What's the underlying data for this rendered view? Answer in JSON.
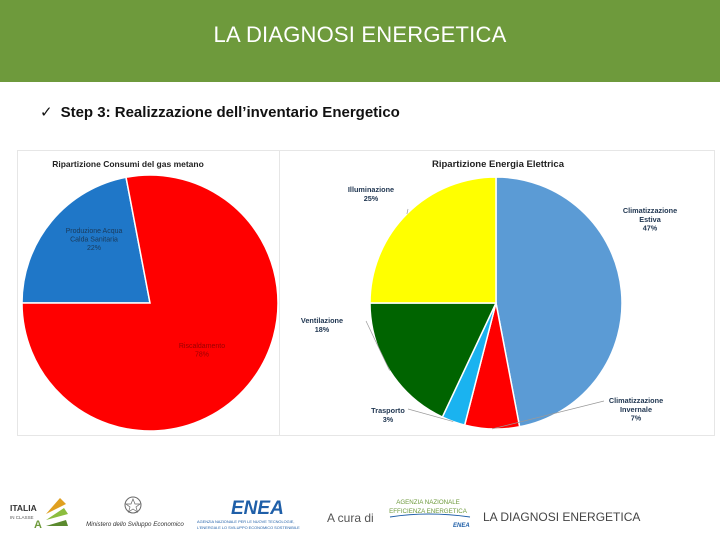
{
  "header": {
    "title": "LA DIAGNOSI ENERGETICA"
  },
  "step": {
    "check": "✓",
    "text": "Step 3: Realizzazione dell’inventario Energetico"
  },
  "chart_data": [
    {
      "type": "pie",
      "title": "Ripartizione Consumi del gas metano",
      "slices": [
        {
          "label_lines": [
            "Produzione Acqua",
            "Calda Sanitaria"
          ],
          "pct_label": "22%",
          "value": 22,
          "color": "#1f77c8"
        },
        {
          "label_lines": [
            "Riscaldamento"
          ],
          "pct_label": "78%",
          "value": 78,
          "color": "#ff0000"
        }
      ]
    },
    {
      "type": "pie",
      "title": "Ripartizione Energia Elettrica",
      "slices": [
        {
          "label_lines": [
            "Climatizzazione",
            "Estiva"
          ],
          "pct_label": "47%",
          "value": 47,
          "color": "#5b9bd5"
        },
        {
          "label_lines": [
            "Climatizzazione",
            "Invernale"
          ],
          "pct_label": "7%",
          "value": 7,
          "color": "#ff0000"
        },
        {
          "label_lines": [
            "Trasporto"
          ],
          "pct_label": "3%",
          "value": 3,
          "color": "#1ab3f0"
        },
        {
          "label_lines": [
            "Ventilazione"
          ],
          "pct_label": "18%",
          "value": 18,
          "color": "#006400"
        },
        {
          "label_lines": [
            "Illuminazione"
          ],
          "pct_label": "25%",
          "value": 25,
          "color": "#ffff00"
        }
      ]
    }
  ],
  "footer": {
    "logo_italia": {
      "line1": "ITALIA",
      "line2": "IN CLASSE",
      "badge": "A"
    },
    "ministero_text": "Ministero dello Sviluppo Economico",
    "enea_name": "ENEA",
    "enea_desc_1": "AGENZIA NAZIONALE PER LE NUOVE TECNOLOGIE,",
    "enea_desc_2": "L’ENERGIA E LO SVILUPPO ECONOMICO SOSTENIBILE",
    "a_cura_di": "A cura di",
    "agenzia_1": "AGENZIA NAZIONALE",
    "agenzia_2": "EFFICIENZA ENERGETICA",
    "title": "LA DIAGNOSI ENERGETICA"
  }
}
